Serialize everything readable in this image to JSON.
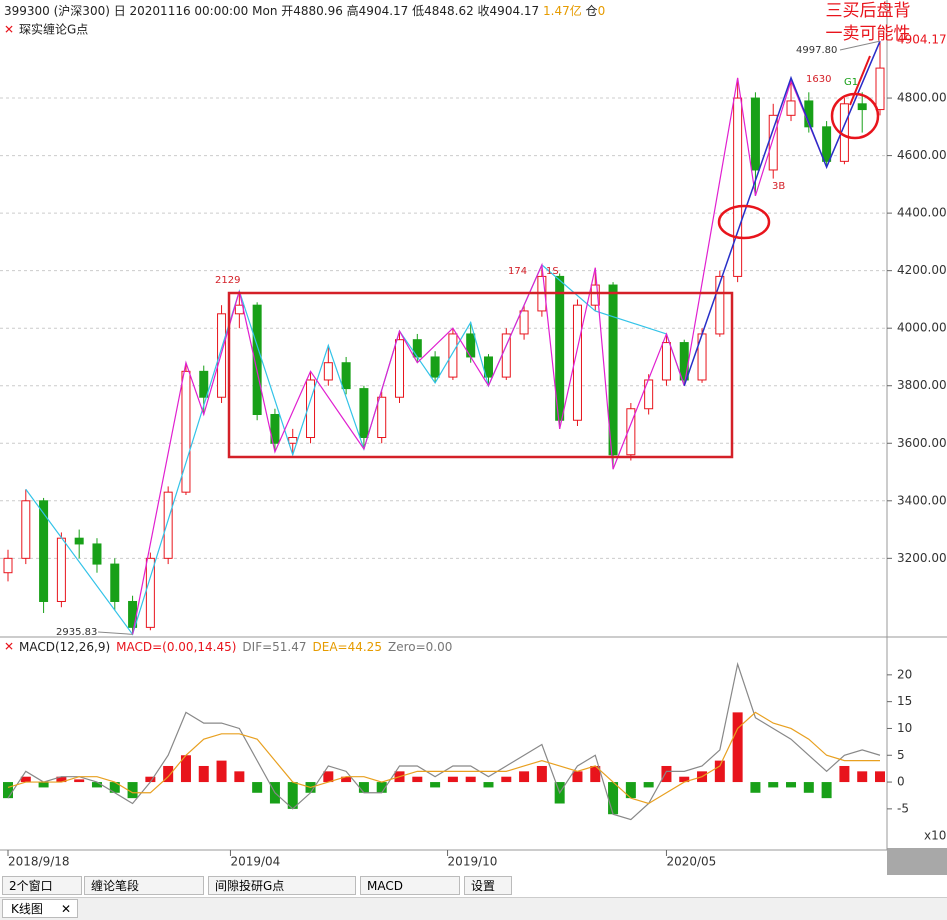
{
  "chart_data": {
    "type": "candlestick",
    "header": [
      {
        "text": "399300 (沪深300) 日 20201116 00:00:00 Mon  开4880.96 高4904.17 低4848.62 收4904.17 ",
        "color": "#222"
      },
      {
        "text": "1.47亿",
        "color": "#e69b00"
      },
      {
        "text": " 仓",
        "color": "#222"
      },
      {
        "text": "0",
        "color": "#e69b00"
      }
    ],
    "indicator": "琛实缠论G点",
    "candles": [
      [
        3150,
        3230,
        3120,
        3200
      ],
      [
        3200,
        3440,
        3180,
        3400
      ],
      [
        3400,
        3410,
        3010,
        3050
      ],
      [
        3050,
        3290,
        3030,
        3270
      ],
      [
        3270,
        3300,
        3200,
        3250
      ],
      [
        3250,
        3270,
        3150,
        3180
      ],
      [
        3180,
        3200,
        3020,
        3050
      ],
      [
        3050,
        3070,
        2935.83,
        2960
      ],
      [
        2960,
        3220,
        2950,
        3200
      ],
      [
        3200,
        3450,
        3180,
        3430
      ],
      [
        3430,
        3880,
        3420,
        3850
      ],
      [
        3850,
        3870,
        3700,
        3760
      ],
      [
        3760,
        4080,
        3740,
        4050
      ],
      [
        4050,
        4129,
        4000,
        4080
      ],
      [
        4080,
        4090,
        3680,
        3700
      ],
      [
        3700,
        3720,
        3570,
        3600
      ],
      [
        3600,
        3650,
        3560,
        3620
      ],
      [
        3620,
        3850,
        3600,
        3820
      ],
      [
        3820,
        3940,
        3800,
        3880
      ],
      [
        3880,
        3900,
        3770,
        3790
      ],
      [
        3790,
        3800,
        3580,
        3620
      ],
      [
        3620,
        3780,
        3600,
        3760
      ],
      [
        3760,
        3990,
        3740,
        3960
      ],
      [
        3960,
        3980,
        3880,
        3900
      ],
      [
        3900,
        3920,
        3810,
        3830
      ],
      [
        3830,
        4000,
        3820,
        3980
      ],
      [
        3980,
        4020,
        3880,
        3900
      ],
      [
        3900,
        3910,
        3800,
        3830
      ],
      [
        3830,
        4000,
        3820,
        3980
      ],
      [
        3980,
        4080,
        3960,
        4060
      ],
      [
        4060,
        4220,
        4040,
        4180
      ],
      [
        4180,
        4190,
        3650,
        3680
      ],
      [
        3680,
        4100,
        3660,
        4080
      ],
      [
        4080,
        4210,
        4060,
        4150
      ],
      [
        4150,
        4160,
        3510,
        3560
      ],
      [
        3560,
        3740,
        3540,
        3720
      ],
      [
        3720,
        3840,
        3700,
        3820
      ],
      [
        3820,
        3980,
        3800,
        3950
      ],
      [
        3950,
        3960,
        3800,
        3820
      ],
      [
        3820,
        4000,
        3810,
        3980
      ],
      [
        3980,
        4200,
        3970,
        4180
      ],
      [
        4180,
        4870,
        4160,
        4800
      ],
      [
        4800,
        4820,
        4460,
        4550
      ],
      [
        4550,
        4780,
        4520,
        4740
      ],
      [
        4740,
        4860,
        4720,
        4790
      ],
      [
        4790,
        4820,
        4680,
        4700
      ],
      [
        4700,
        4720,
        4560,
        4580
      ],
      [
        4580,
        4800,
        4570,
        4780
      ],
      [
        4780,
        4820,
        4680,
        4760
      ],
      [
        4760,
        4997.8,
        4740,
        4904.17
      ]
    ],
    "up_color": "#e8141c",
    "down_color": "#18a018",
    "ylim": [
      2930,
      5120
    ],
    "yticks": [
      {
        "value": 3200,
        "label": "3200.00"
      },
      {
        "value": 3400,
        "label": "3400.00"
      },
      {
        "value": 3600,
        "label": "3600.00"
      },
      {
        "value": 3800,
        "label": "3800.00"
      },
      {
        "value": 4000,
        "label": "4000.00"
      },
      {
        "value": 4200,
        "label": "4200.00"
      },
      {
        "value": 4400,
        "label": "4400.00"
      },
      {
        "value": 4600,
        "label": "4600.00"
      },
      {
        "value": 4800,
        "label": "4800.00"
      }
    ],
    "last_price": {
      "value": 4904.17,
      "label": "4904.17"
    },
    "xlim": [
      0,
      49
    ],
    "xticks": [
      {
        "value": 0,
        "label": "2018/9/18"
      },
      {
        "value": 12.5,
        "label": "2019/04"
      },
      {
        "value": 24.7,
        "label": "2019/10"
      },
      {
        "value": 37,
        "label": "2020/05"
      }
    ],
    "strokes": [
      {
        "color": "#33c3e8",
        "x": [
          1,
          7,
          13,
          16,
          18,
          20,
          22,
          24,
          26,
          27,
          30,
          33,
          37,
          38
        ],
        "y": [
          3440,
          2935.83,
          4129,
          3560,
          3940,
          3580,
          3990,
          3810,
          4020,
          3800,
          4220,
          4060,
          3980,
          3800
        ]
      },
      {
        "color": "#e020d0",
        "x": [
          7,
          10,
          11,
          13,
          15,
          17,
          20,
          22,
          23,
          25,
          27,
          30,
          31,
          33,
          34,
          37,
          38,
          41,
          42,
          44,
          46,
          49
        ],
        "y": [
          2935.83,
          3880,
          3700,
          4129,
          3570,
          3850,
          3580,
          3990,
          3880,
          4000,
          3800,
          4220,
          3650,
          4210,
          3510,
          3980,
          3800,
          4870,
          4460,
          4860,
          4560,
          4997.8
        ]
      },
      {
        "color": "#2830c8",
        "x": [
          38,
          44,
          46,
          49
        ],
        "y": [
          3800,
          4870,
          4560,
          4997.8
        ]
      }
    ],
    "annotations": [
      "2129",
      "174",
      "1S",
      "3B",
      "1630",
      "G1",
      "2935.83",
      "4997.80"
    ],
    "callout": [
      "三买后盘背",
      "一卖可能性"
    ],
    "macd": {
      "title": [
        {
          "text": "MACD(12,26,9)",
          "color": "#222"
        },
        {
          "text": "MACD=(0.00,14.45)",
          "color": "#e8141c"
        },
        {
          "text": "DIF=51.47",
          "color": "#777"
        },
        {
          "text": "DEA=44.25",
          "color": "#e69b00"
        },
        {
          "text": "Zero=0.00",
          "color": "#777"
        }
      ],
      "ylim": [
        -12.3,
        26.5
      ],
      "yticks": [
        -5,
        0,
        5,
        10,
        15,
        20
      ],
      "unit": "x10",
      "hist": [
        -3,
        1,
        -1,
        1,
        0.5,
        -1,
        -2,
        -3,
        1,
        3,
        5,
        3,
        4,
        2,
        -2,
        -4,
        -5,
        -2,
        2,
        1,
        -2,
        -2,
        2,
        1,
        -1,
        1,
        1,
        -1,
        1,
        2,
        3,
        -4,
        2,
        3,
        -6,
        -3,
        -1,
        3,
        1,
        2,
        4,
        13,
        -2,
        -1,
        -1,
        -2,
        -3,
        3,
        2,
        2
      ],
      "dif": [
        -3,
        2,
        0,
        1,
        1,
        0,
        -2,
        -4,
        0,
        5,
        13,
        11,
        11,
        10,
        4,
        -2,
        -5,
        -2,
        3,
        2,
        -2,
        -2,
        3,
        3,
        1,
        3,
        3,
        1,
        3,
        5,
        7,
        -2,
        3,
        5,
        -6,
        -7,
        -4,
        2,
        2,
        3,
        6,
        22,
        12,
        10,
        8,
        5,
        2,
        5,
        6,
        5
      ],
      "dea": [
        -1,
        0,
        0,
        0,
        1,
        1,
        0,
        -2,
        -2,
        1,
        5,
        8,
        9,
        9,
        8,
        4,
        0,
        -1,
        0,
        1,
        1,
        0,
        1,
        2,
        2,
        2,
        2,
        2,
        2,
        3,
        4,
        3,
        2,
        3,
        0,
        -3,
        -4,
        -2,
        0,
        1,
        3,
        10,
        13,
        11,
        10,
        8,
        5,
        4,
        4,
        4
      ],
      "dif_color": "#888",
      "dea_color": "#e8a020"
    }
  },
  "toolbar": [
    "2个窗口",
    "缠论笔段",
    "间隙投研G点",
    "MACD",
    "设置"
  ],
  "tab": "K线图"
}
